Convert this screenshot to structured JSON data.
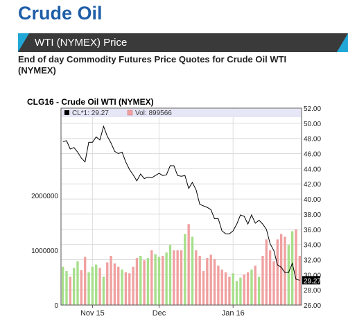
{
  "page": {
    "title": "Crude Oil",
    "section_label": "WTI (NYMEX) Price",
    "subtitle": "End of day Commodity Futures Price Quotes for Crude Oil WTI (NYMEX)"
  },
  "colors": {
    "title": "#1f5ea8",
    "bar_dark": "#3a3a3a",
    "bar_accent": "#20a7d6",
    "price_line": "#000000",
    "vol_up": "#a6df8a",
    "vol_down": "#f0a0a0",
    "legend_bg": "#e6e6f7"
  },
  "chart_data": {
    "type": "line",
    "title": "CLG16 - Crude Oil WTI (NYMEX)",
    "legend": {
      "price": "CL*1: 29.27",
      "volume": "Vol: 899566",
      "placement": "top-left"
    },
    "last_value_label": "29.27",
    "price_axis": {
      "side": "right",
      "ylim": [
        26,
        52
      ],
      "ticks": [
        "52.00",
        "50.00",
        "48.00",
        "46.00",
        "44.00",
        "42.00",
        "40.00",
        "38.00",
        "36.00",
        "34.00",
        "32.00",
        "30.00",
        "28.00",
        "26.00"
      ]
    },
    "volume_axis": {
      "side": "left",
      "ylim": [
        0,
        3600000
      ],
      "ticks": [
        "2000000",
        "1000000",
        "0"
      ]
    },
    "x_ticks": [
      {
        "label": "Nov 15",
        "index": 8
      },
      {
        "label": "Dec",
        "index": 26
      },
      {
        "label": "Jan 16",
        "index": 46
      }
    ],
    "grid": true,
    "series": [
      {
        "key": "price",
        "values": [
          47.6,
          47.7,
          46.6,
          46.8,
          46.2,
          45.4,
          44.9,
          47.5,
          47.5,
          48.2,
          47.8,
          49.6,
          48.3,
          47.4,
          46.3,
          46.0,
          46.2,
          44.9,
          43.9,
          43.2,
          42.4,
          43.3,
          42.7,
          42.9,
          42.8,
          43.1,
          43.4,
          43.1,
          43.2,
          44.4,
          44.4,
          43.1,
          43.0,
          43.1,
          41.4,
          42.2,
          41.2,
          39.3,
          39.1,
          38.9,
          38.6,
          37.4,
          37.4,
          35.8,
          35.4,
          35.4,
          35.8,
          36.7,
          37.9,
          37.7,
          36.7,
          37.9,
          36.8,
          37.2,
          36.7,
          36.0,
          34.1,
          33.2,
          31.3,
          31.0,
          30.3,
          30.3,
          31.5,
          29.4,
          29.27
        ]
      },
      {
        "key": "volume",
        "values": [
          700000,
          620000,
          520000,
          680000,
          800000,
          640000,
          880000,
          600000,
          700000,
          740000,
          680000,
          520000,
          780000,
          900000,
          760000,
          700000,
          650000,
          600000,
          580000,
          700000,
          860000,
          900000,
          820000,
          860000,
          1000000,
          930000,
          880000,
          900000,
          960000,
          1100000,
          1000000,
          1000000,
          1000000,
          1300000,
          1480000,
          1250000,
          1000000,
          900000,
          620000,
          860000,
          920000,
          840000,
          720000,
          650000,
          600000,
          520000,
          580000,
          440000,
          500000,
          560000,
          600000,
          650000,
          720000,
          520000,
          900000,
          1200000,
          1000000,
          800000,
          1200000,
          1300000,
          1250000,
          1100000,
          1350000,
          1380000,
          900000
        ],
        "direction": [
          0,
          0,
          1,
          0,
          0,
          1,
          1,
          0,
          0,
          0,
          1,
          0,
          1,
          1,
          1,
          1,
          0,
          1,
          1,
          1,
          1,
          0,
          1,
          0,
          1,
          0,
          0,
          1,
          0,
          0,
          1,
          1,
          1,
          0,
          1,
          0,
          1,
          1,
          1,
          1,
          1,
          1,
          1,
          1,
          1,
          1,
          0,
          0,
          0,
          1,
          1,
          0,
          1,
          0,
          1,
          1,
          1,
          1,
          1,
          1,
          1,
          0,
          0,
          1,
          1
        ]
      }
    ]
  }
}
